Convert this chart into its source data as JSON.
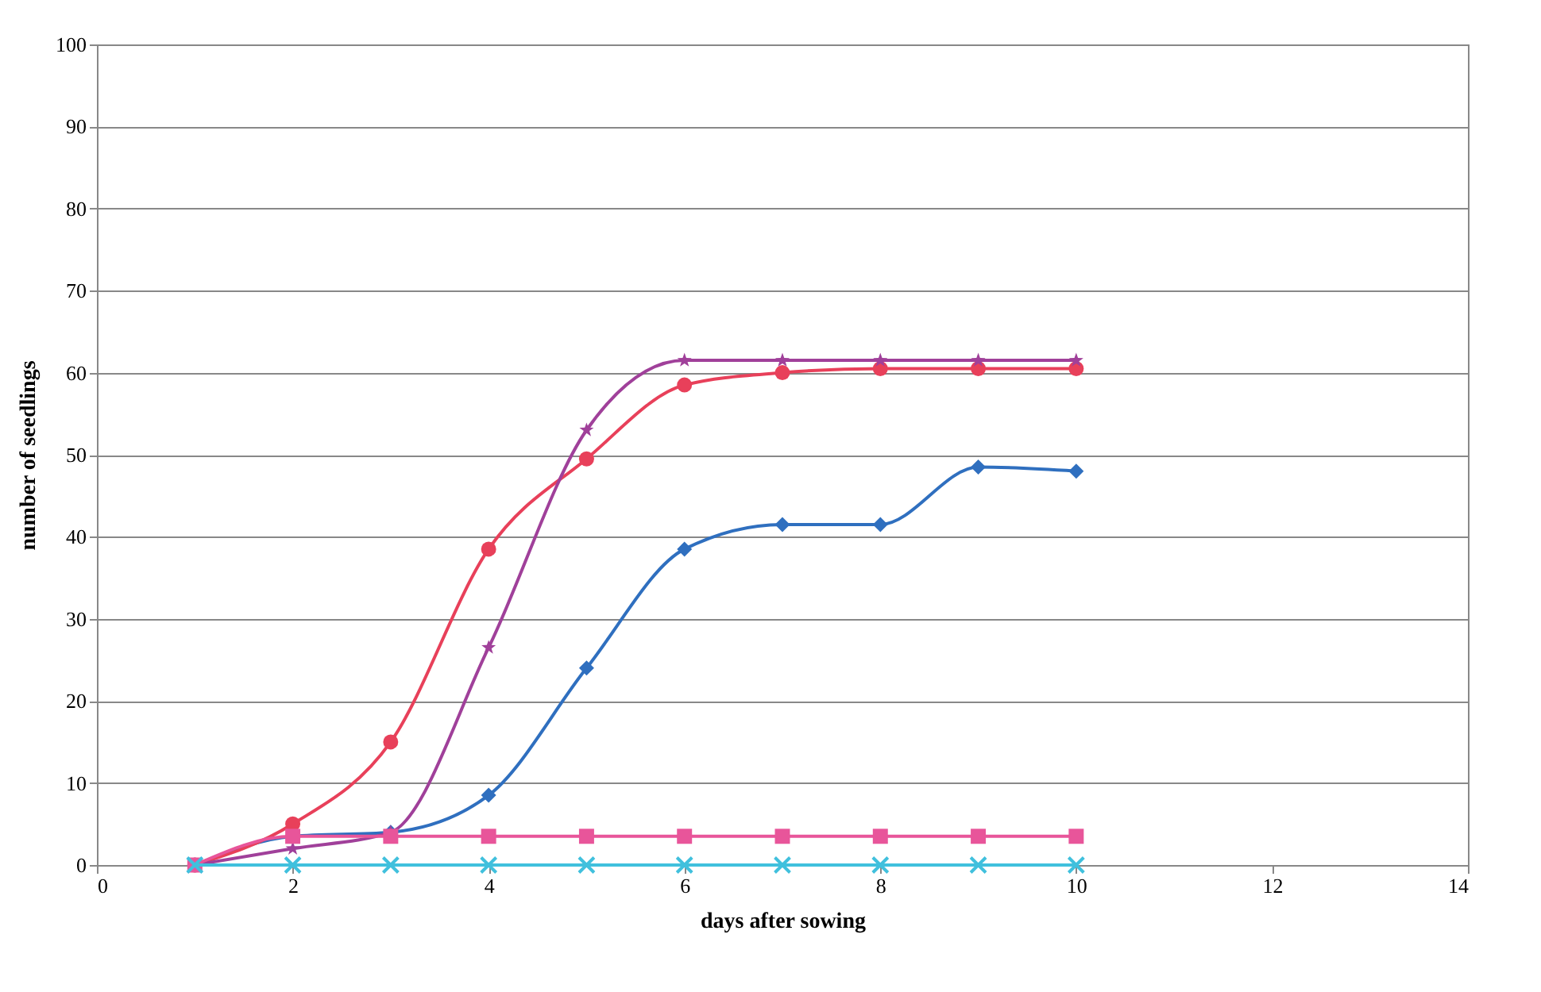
{
  "chart_data": {
    "type": "line",
    "xlabel": "days after sowing",
    "ylabel": "number of seedlings",
    "x": [
      1,
      2,
      3,
      4,
      5,
      6,
      7,
      8,
      9,
      10
    ],
    "series": [
      {
        "color": "#2f6fbf",
        "marker": "diamond",
        "values": [
          0,
          3.5,
          4,
          8.5,
          24,
          38.5,
          41.5,
          41.5,
          48.5,
          48
        ]
      },
      {
        "color": "#e8405a",
        "marker": "circle",
        "values": [
          0,
          5,
          15,
          38.5,
          49.5,
          58.5,
          60,
          60.5,
          60.5,
          60.5
        ]
      },
      {
        "color": "#a0409a",
        "marker": "star",
        "values": [
          0,
          2,
          4,
          26.5,
          53,
          61.5,
          61.5,
          61.5,
          61.5,
          61.5
        ]
      },
      {
        "color": "#e8559a",
        "marker": "square",
        "values": [
          0,
          3.5,
          3.5,
          3.5,
          3.5,
          3.5,
          3.5,
          3.5,
          3.5,
          3.5
        ]
      },
      {
        "color": "#40c0dd",
        "marker": "cross",
        "values": [
          0,
          0,
          0,
          0,
          0,
          0,
          0,
          0,
          0,
          0
        ]
      }
    ],
    "xlim": [
      0,
      14
    ],
    "xticks": [
      0,
      2,
      4,
      6,
      8,
      10,
      12,
      14
    ],
    "ylim": [
      0,
      100
    ],
    "yticks": [
      0,
      10,
      20,
      30,
      40,
      50,
      60,
      70,
      80,
      90,
      100
    ],
    "grid": "y"
  }
}
